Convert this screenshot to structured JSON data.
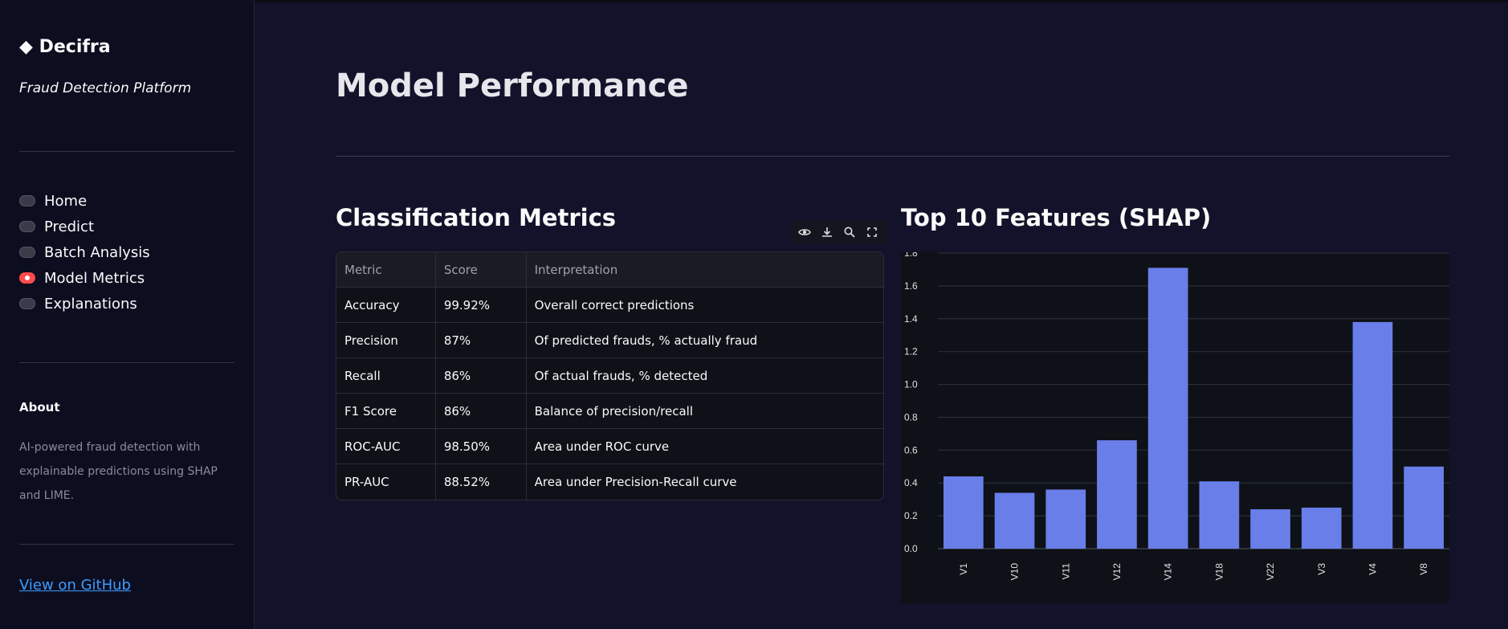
{
  "sidebar": {
    "brand": "Decifra",
    "tagline": "Fraud Detection Platform",
    "nav": [
      {
        "label": "Home",
        "selected": false
      },
      {
        "label": "Predict",
        "selected": false
      },
      {
        "label": "Batch Analysis",
        "selected": false
      },
      {
        "label": "Model Metrics",
        "selected": true
      },
      {
        "label": "Explanations",
        "selected": false
      }
    ],
    "about_heading": "About",
    "about_text": "AI-powered fraud detection with explainable predictions using SHAP and LIME.",
    "github_link": "View on GitHub"
  },
  "main": {
    "title": "Model Performance",
    "metrics_heading": "Classification Metrics",
    "features_heading": "Top 10 Features (SHAP)",
    "table": {
      "columns": [
        "Metric",
        "Score",
        "Interpretation"
      ],
      "rows": [
        [
          "Accuracy",
          "99.92%",
          "Overall correct predictions"
        ],
        [
          "Precision",
          "87%",
          "Of predicted frauds, % actually fraud"
        ],
        [
          "Recall",
          "86%",
          "Of actual frauds, % detected"
        ],
        [
          "F1 Score",
          "86%",
          "Balance of precision/recall"
        ],
        [
          "ROC-AUC",
          "98.50%",
          "Area under ROC curve"
        ],
        [
          "PR-AUC",
          "88.52%",
          "Area under Precision-Recall curve"
        ]
      ]
    },
    "toolbar_icons": [
      "eye-icon",
      "download-icon",
      "search-icon",
      "fullscreen-icon"
    ]
  },
  "colors": {
    "accent": "#ff4b4b",
    "bar": "#6a7ee9",
    "link": "#3b9cff"
  },
  "chart_data": {
    "type": "bar",
    "categories": [
      "V1",
      "V10",
      "V11",
      "V12",
      "V14",
      "V18",
      "V22",
      "V3",
      "V4",
      "V8"
    ],
    "values": [
      0.44,
      0.34,
      0.36,
      0.66,
      1.71,
      0.41,
      0.24,
      0.25,
      1.38,
      0.5
    ],
    "ylim": [
      0,
      1.8
    ],
    "yticks": [
      "0.0",
      "0.2",
      "0.4",
      "0.6",
      "0.8",
      "1.0",
      "1.2",
      "1.4",
      "1.6",
      "1.8"
    ],
    "grid": true
  }
}
